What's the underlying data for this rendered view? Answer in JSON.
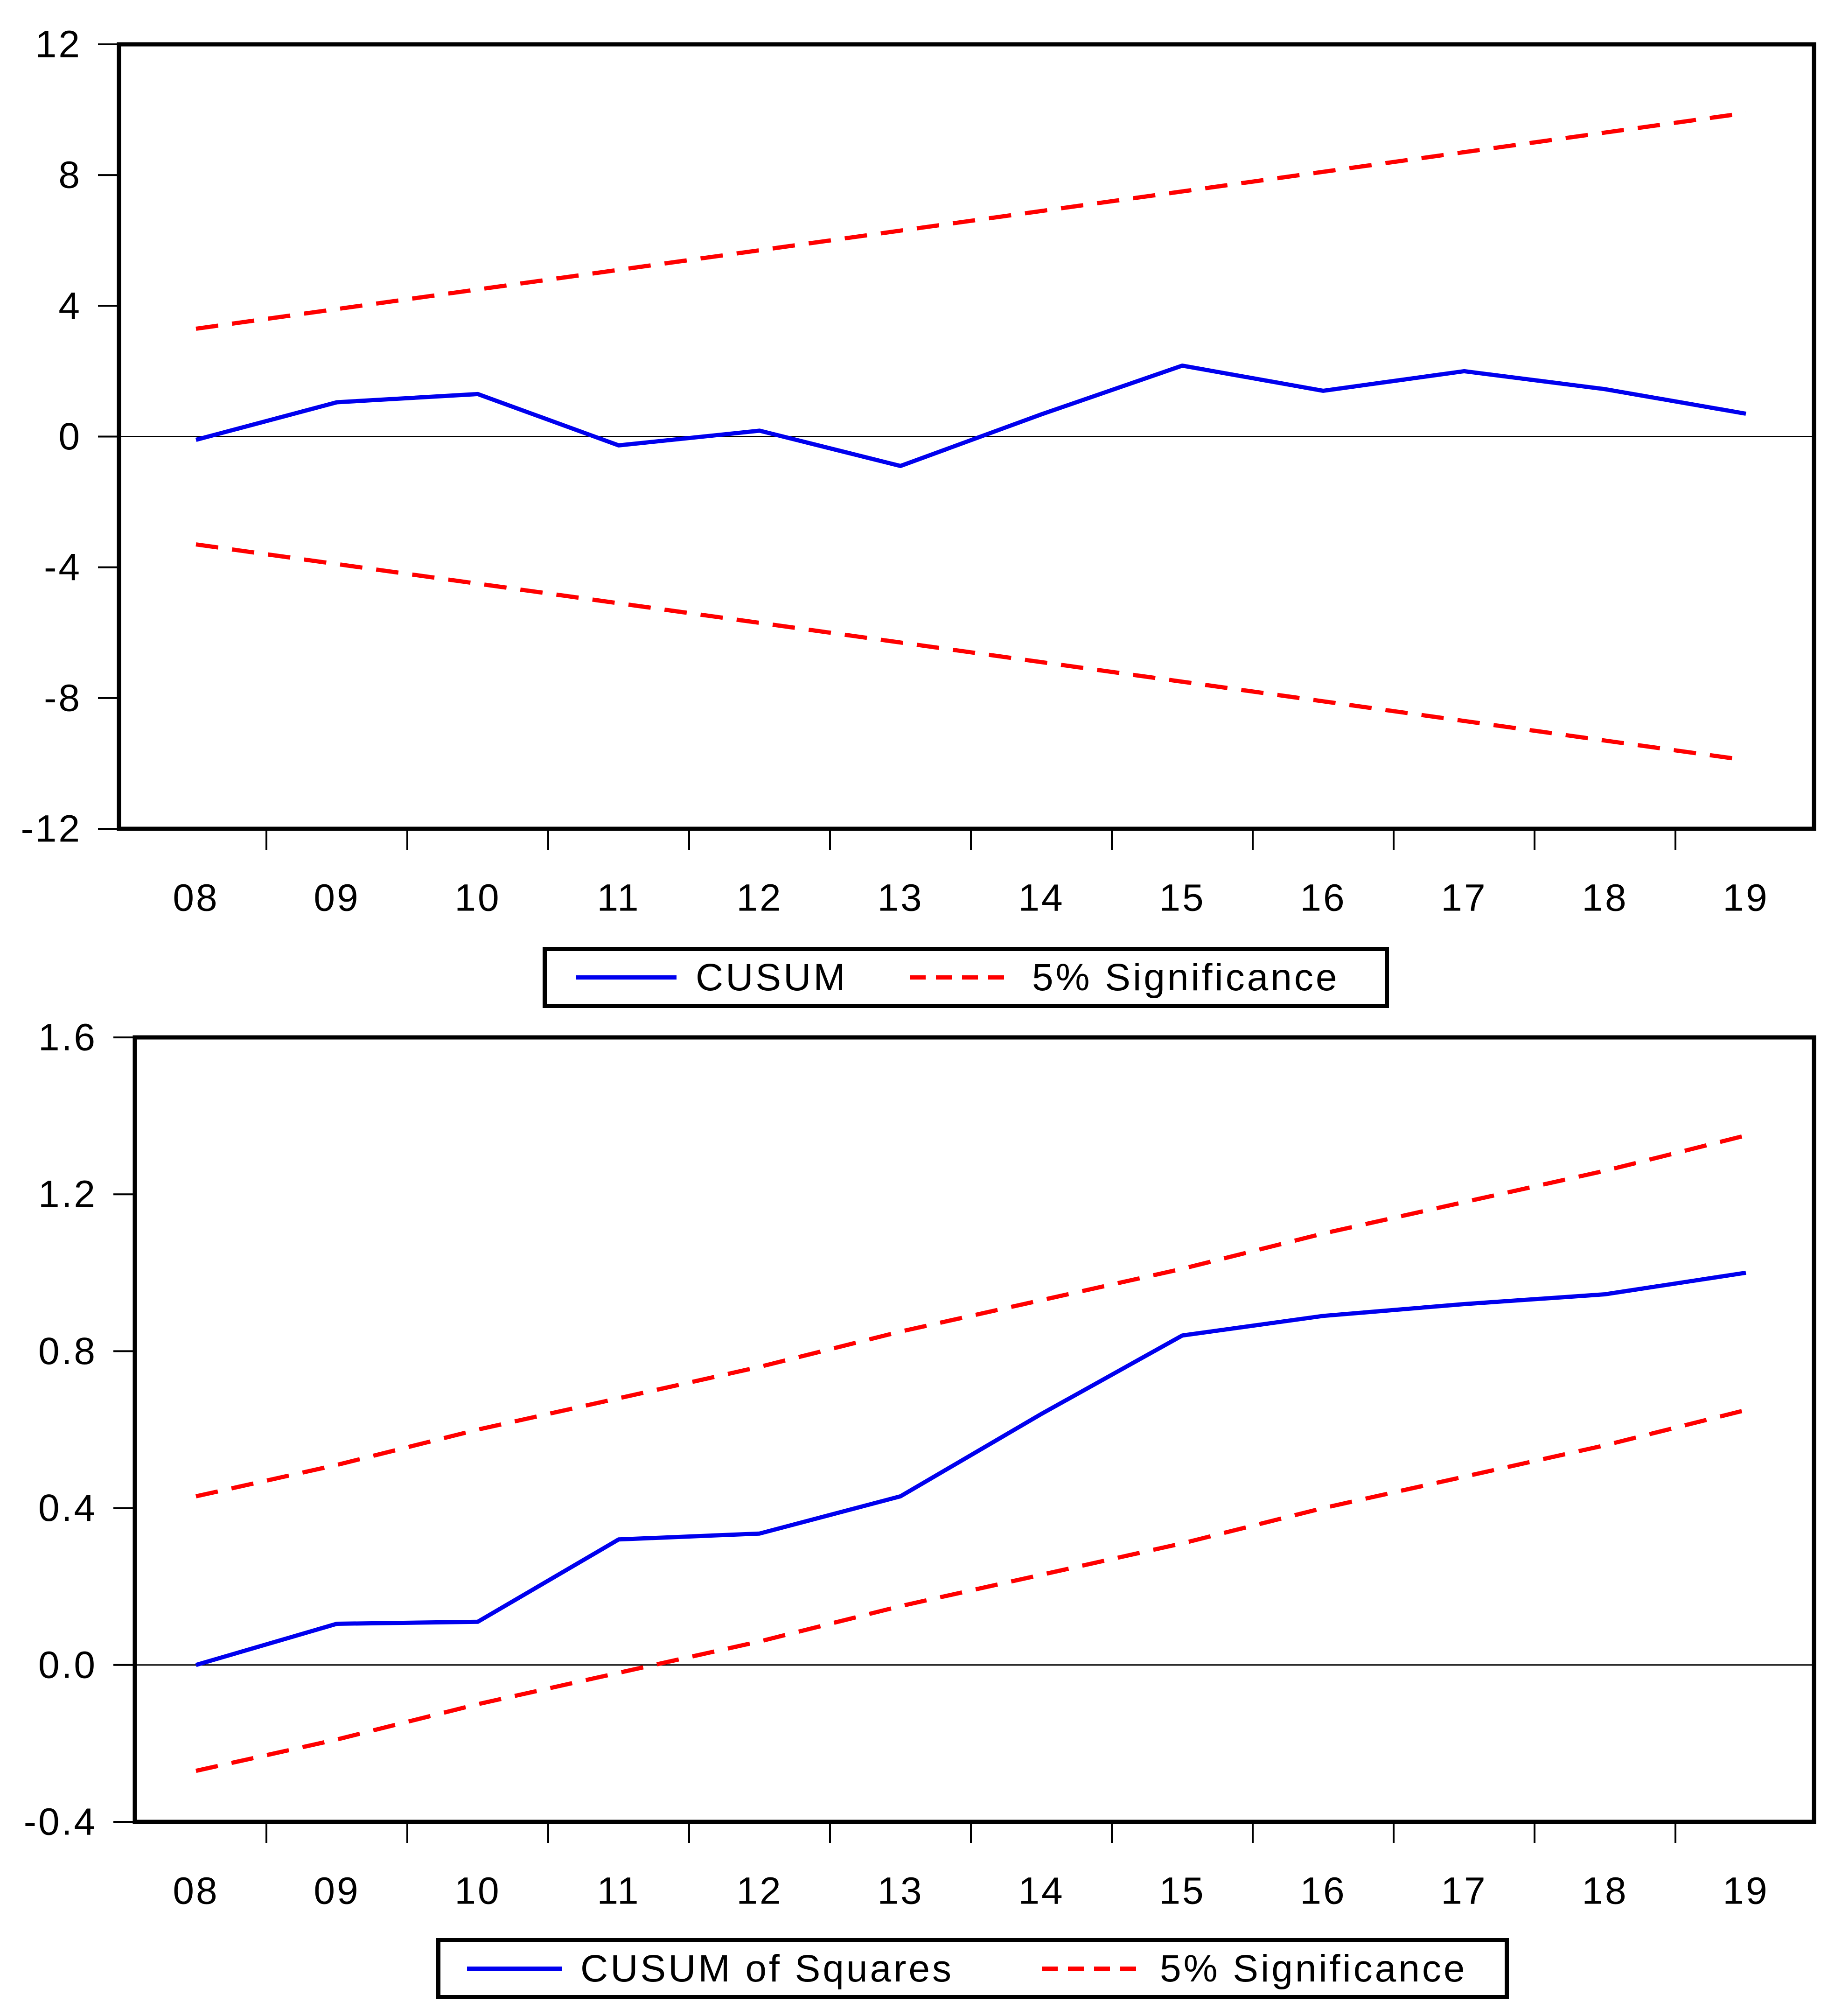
{
  "page": {
    "background": "#FFFFFF"
  },
  "colors": {
    "series_line": "#0000EE",
    "significance_line": "#FF0000",
    "axis": "#000000"
  },
  "chart_data": [
    {
      "name": "cusum",
      "type": "line",
      "title": "",
      "xlabel": "",
      "ylabel": "",
      "x_categories": [
        "08",
        "09",
        "10",
        "11",
        "12",
        "13",
        "14",
        "15",
        "16",
        "17",
        "18",
        "19"
      ],
      "y_tick_labels": [
        "12",
        "8",
        "4",
        "0",
        "-4",
        "-8",
        "-12"
      ],
      "ylim": [
        -12,
        12
      ],
      "grid": false,
      "zero_line": true,
      "legend_position": "below-center",
      "series": [
        {
          "name": "CUSUM",
          "style": "solid",
          "color": "#0000EE",
          "values": [
            -0.1,
            1.05,
            1.3,
            -0.27,
            0.18,
            -0.9,
            0.68,
            2.17,
            1.4,
            2.0,
            1.45,
            0.7
          ]
        },
        {
          "name": "5% Significance (upper)",
          "style": "dashed",
          "color": "#FF0000",
          "values": [
            3.3,
            3.9,
            4.5,
            5.1,
            5.7,
            6.3,
            6.9,
            7.5,
            8.1,
            8.7,
            9.3,
            9.9
          ]
        },
        {
          "name": "5% Significance (lower)",
          "style": "dashed",
          "color": "#FF0000",
          "values": [
            -3.3,
            -3.9,
            -4.5,
            -5.1,
            -5.7,
            -6.3,
            -6.9,
            -7.5,
            -8.1,
            -8.7,
            -9.3,
            -9.9
          ]
        }
      ],
      "legend": [
        {
          "label": "CUSUM",
          "style": "solid",
          "color": "#0000EE"
        },
        {
          "label": "5% Significance",
          "style": "dashed",
          "color": "#FF0000"
        }
      ]
    },
    {
      "name": "cusum-of-squares",
      "type": "line",
      "title": "",
      "xlabel": "",
      "ylabel": "",
      "x_categories": [
        "08",
        "09",
        "10",
        "11",
        "12",
        "13",
        "14",
        "15",
        "16",
        "17",
        "18",
        "19"
      ],
      "y_tick_labels": [
        "1.6",
        "1.2",
        "0.8",
        "0.4",
        "0.0",
        "-0.4"
      ],
      "ylim": [
        -0.4,
        1.6
      ],
      "grid": false,
      "zero_line": true,
      "legend_position": "below-center",
      "series": [
        {
          "name": "CUSUM of Squares",
          "style": "solid",
          "color": "#0000EE",
          "values": [
            0.0,
            0.105,
            0.11,
            0.32,
            0.335,
            0.43,
            0.64,
            0.84,
            0.89,
            0.92,
            0.945,
            1.0
          ]
        },
        {
          "name": "5% Significance (upper)",
          "style": "dashed",
          "color": "#FF0000",
          "values": [
            0.43,
            0.51,
            0.6,
            0.68,
            0.76,
            0.85,
            0.93,
            1.01,
            1.1,
            1.18,
            1.26,
            1.35
          ]
        },
        {
          "name": "5% Significance (lower)",
          "style": "dashed",
          "color": "#FF0000",
          "values": [
            -0.27,
            -0.19,
            -0.1,
            -0.02,
            0.06,
            0.15,
            0.23,
            0.31,
            0.4,
            0.48,
            0.56,
            0.65
          ]
        }
      ],
      "legend": [
        {
          "label": "CUSUM of Squares",
          "style": "solid",
          "color": "#0000EE"
        },
        {
          "label": "5% Significance",
          "style": "dashed",
          "color": "#FF0000"
        }
      ]
    }
  ]
}
